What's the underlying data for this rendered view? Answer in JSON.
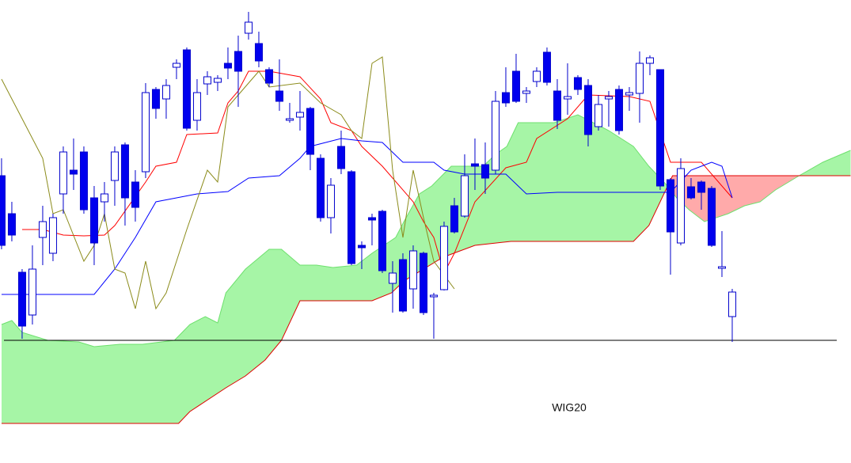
{
  "chart_data": {
    "type": "candlestick",
    "title": "WIG20",
    "xlim": [
      -0.15,
      82.54
    ],
    "ylim": [
      0,
      585
    ],
    "hline": 155,
    "hline_color": "#000000",
    "up_color": "#ffffff",
    "down_color": "#0000ee",
    "edge_color": "#0000cc",
    "x": [
      0,
      1,
      2,
      3,
      4,
      5,
      6,
      7,
      8,
      9,
      10,
      11,
      12,
      13,
      14,
      15,
      16,
      17,
      18,
      19,
      20,
      21,
      22,
      23,
      24,
      25,
      26,
      27,
      28,
      29,
      30,
      31,
      32,
      33,
      34,
      35,
      36,
      37,
      38,
      39,
      40,
      41,
      42,
      43,
      44,
      45,
      46,
      47,
      48,
      49,
      50,
      51,
      52,
      53,
      54,
      55,
      56,
      57,
      58,
      59,
      60,
      61,
      62,
      63,
      64,
      65,
      66,
      67,
      68,
      69,
      70,
      71
    ],
    "open": [
      363,
      315,
      241,
      187,
      285,
      265,
      340,
      370,
      393,
      335,
      330,
      357,
      402,
      355,
      368,
      472,
      460,
      500,
      522,
      433,
      479,
      481,
      505,
      520,
      543,
      530,
      497,
      470,
      433,
      437,
      448,
      385,
      310,
      400,
      368,
      275,
      310,
      318,
      227,
      257,
      220,
      265,
      210,
      219,
      325,
      312,
      378,
      377,
      370,
      468,
      495,
      467,
      482,
      519,
      470,
      460,
      487,
      477,
      425,
      460,
      472,
      465,
      467,
      505,
      497,
      358,
      278,
      349,
      355,
      347,
      246,
      185
    ],
    "high": [
      385,
      330,
      245,
      275,
      325,
      315,
      400,
      410,
      400,
      350,
      355,
      400,
      405,
      370,
      480,
      475,
      485,
      510,
      525,
      485,
      495,
      490,
      525,
      540,
      570,
      545,
      500,
      510,
      455,
      470,
      450,
      390,
      360,
      420,
      370,
      280,
      315,
      320,
      255,
      265,
      275,
      267,
      215,
      305,
      335,
      390,
      410,
      405,
      470,
      500,
      517,
      475,
      500,
      525,
      485,
      505,
      490,
      485,
      465,
      470,
      477,
      475,
      520,
      515,
      497,
      360,
      385,
      360,
      357,
      350,
      293,
      220
    ],
    "low": [
      270,
      280,
      157,
      175,
      250,
      255,
      315,
      345,
      315,
      250,
      305,
      325,
      300,
      305,
      360,
      435,
      435,
      485,
      420,
      420,
      465,
      470,
      485,
      450,
      535,
      500,
      475,
      445,
      430,
      420,
      370,
      305,
      290,
      365,
      250,
      245,
      275,
      240,
      190,
      190,
      195,
      187,
      157,
      218,
      290,
      310,
      345,
      340,
      365,
      450,
      455,
      455,
      475,
      477,
      422,
      440,
      465,
      400,
      420,
      425,
      415,
      445,
      430,
      490,
      345,
      238,
      275,
      333,
      320,
      273,
      235,
      153
    ],
    "close": [
      275,
      288,
      173,
      245,
      305,
      310,
      393,
      365,
      320,
      278,
      340,
      393,
      335,
      323,
      468,
      448,
      477,
      505,
      423,
      468,
      488,
      486,
      499,
      495,
      557,
      508,
      480,
      457,
      435,
      443,
      390,
      310,
      351,
      372,
      252,
      272,
      307,
      243,
      240,
      192,
      268,
      190,
      212,
      299,
      292,
      363,
      375,
      360,
      457,
      455,
      457,
      470,
      495,
      481,
      433,
      463,
      472,
      415,
      453,
      463,
      420,
      468,
      505,
      512,
      350,
      292,
      372,
      335,
      342,
      275,
      248,
      216
    ],
    "lines": [
      {
        "color": "#ff0000",
        "x": [
          2,
          4,
          6,
          8,
          10,
          11,
          14,
          15,
          17,
          18,
          21,
          22,
          23,
          24,
          26,
          29,
          31,
          32,
          34,
          35,
          37,
          40,
          41,
          42,
          43,
          44,
          46,
          49,
          51,
          52,
          55,
          57,
          61,
          63,
          65,
          68,
          71
        ],
        "values": [
          295,
          295,
          288,
          287,
          288,
          300,
          355,
          375,
          380,
          415,
          417,
          455,
          470,
          495,
          495,
          488,
          460,
          430,
          420,
          400,
          375,
          330,
          305,
          285,
          240,
          265,
          330,
          373,
          380,
          410,
          435,
          465,
          463,
          457,
          380,
          380,
          335
        ]
      },
      {
        "color": "#0000ff",
        "x": [
          0,
          9,
          11,
          13,
          15,
          17,
          19,
          22,
          24,
          27,
          29,
          30,
          33,
          35,
          37,
          39,
          42,
          43,
          45,
          49,
          51,
          54,
          65,
          67,
          69,
          70,
          71
        ],
        "values": [
          213,
          213,
          245,
          285,
          330,
          335,
          340,
          343,
          360,
          363,
          385,
          400,
          410,
          407,
          405,
          380,
          380,
          370,
          365,
          365,
          340,
          342,
          342,
          370,
          380,
          375,
          335
        ]
      },
      {
        "color": "#8b8b1a",
        "x": [
          0,
          2,
          4,
          5,
          6,
          8,
          9,
          10,
          11,
          12,
          13,
          14,
          15,
          16,
          18,
          20,
          21,
          22,
          23,
          24,
          25,
          26,
          29,
          31,
          33,
          34,
          35,
          36,
          37,
          38,
          39,
          40,
          41,
          42,
          44
        ],
        "values": [
          485,
          435,
          385,
          315,
          320,
          255,
          275,
          315,
          245,
          240,
          195,
          255,
          195,
          215,
          295,
          370,
          355,
          450,
          465,
          480,
          495,
          475,
          480,
          455,
          440,
          420,
          410,
          505,
          513,
          370,
          285,
          370,
          310,
          255,
          220
        ]
      }
    ],
    "cloud": {
      "span_a": {
        "color": "#6ee06e",
        "x": [
          0,
          1,
          2,
          4.5,
          7.5,
          9,
          11.5,
          13.7,
          16.8,
          18.3,
          19.8,
          21,
          21.8,
          23.7,
          26,
          27.2,
          29,
          30.6,
          32.2,
          34.5,
          36,
          38.3,
          39.1,
          40.6,
          41.8,
          43.7,
          46.8,
          48,
          49.1,
          50.2,
          53.7,
          56,
          59,
          61.4,
          62.9,
          64.5,
          65.6,
          66.8,
          68.3,
          70.6,
          72.2,
          73.7,
          75.2,
          77.5,
          79.8,
          82.5
        ],
        "values": [
          175,
          180,
          165,
          155,
          153,
          147,
          150,
          150,
          155,
          175,
          185,
          177,
          215,
          245,
          270,
          270,
          250,
          250,
          247,
          250,
          265,
          285,
          305,
          340,
          350,
          375,
          375,
          390,
          400,
          430,
          430,
          440,
          420,
          400,
          375,
          353,
          335,
          320,
          305,
          315,
          325,
          330,
          345,
          363,
          380,
          395
        ]
      },
      "span_b": {
        "color": "#e00000",
        "x": [
          0,
          17.2,
          18.3,
          21.8,
          23.7,
          25.6,
          27.2,
          29,
          36,
          37.9,
          39.1,
          42.9,
          46,
          49.5,
          61.4,
          62.9,
          65.2,
          82.5
        ],
        "values": [
          50,
          50,
          65,
          95,
          110,
          130,
          155,
          205,
          205,
          215,
          230,
          260,
          275,
          280,
          280,
          300,
          363,
          363
        ]
      },
      "colors": [
        "#a6f5a6",
        "#ffaaaa"
      ]
    }
  }
}
